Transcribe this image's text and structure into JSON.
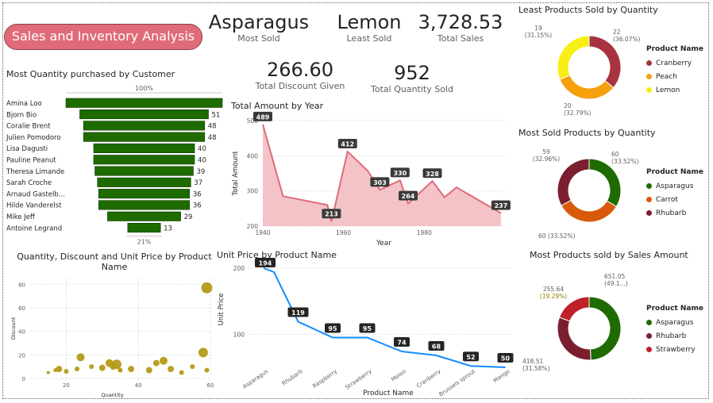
{
  "app_title": "Sales and Inventory Analysis",
  "kpis": {
    "most_sold_value": "Asparagus",
    "most_sold_label": "Most Sold",
    "least_sold_value": "Lemon",
    "least_sold_label": "Least Sold",
    "total_sales_value": "3,728.53",
    "total_sales_label": "Total Sales",
    "discount_value": "266.60",
    "discount_label": "Total Discount Given",
    "qty_value": "952",
    "qty_label": "Total Quantity Sold"
  },
  "chart_data": [
    {
      "id": "funnel",
      "type": "bar",
      "title": "Most Quantity purchased by Customer",
      "top_pct": "100%",
      "bottom_pct": "21%",
      "color": "#1e6b00",
      "categories": [
        "Amina Loo",
        "Bjorn Bio",
        "Coralie Brent",
        "Julien Pomodoro",
        "Lisa Dagusti",
        "Pauline Peanut",
        "Theresa Limande",
        "Sarah Croche",
        "Arnaud Gastelb...",
        "Hilde Vanderelst",
        "Mike Jeff",
        "Antoine Legrand"
      ],
      "values": [
        62,
        51,
        48,
        48,
        40,
        40,
        39,
        37,
        36,
        36,
        29,
        13
      ],
      "labels": [
        "",
        "51",
        "48",
        "48",
        "40",
        "40",
        "39",
        "37",
        "36",
        "36",
        "29",
        "13"
      ]
    },
    {
      "id": "area",
      "type": "area",
      "title": "Total Amount by Year",
      "xlabel": "Year",
      "ylabel": "Total Amount",
      "xlim": [
        1940,
        2000
      ],
      "ylim": [
        200,
        500
      ],
      "x_ticks": [
        "1940",
        "1960",
        "1980"
      ],
      "y_ticks": [
        "200",
        "300",
        "400",
        "500"
      ],
      "color": "#e06b78",
      "fill": "#f3c3c8",
      "points": [
        {
          "x": 1940,
          "y": 489
        },
        {
          "x": 1945,
          "y": 285
        },
        {
          "x": 1956,
          "y": 260
        },
        {
          "x": 1957,
          "y": 213
        },
        {
          "x": 1961,
          "y": 412
        },
        {
          "x": 1966,
          "y": 357
        },
        {
          "x": 1969,
          "y": 303
        },
        {
          "x": 1974,
          "y": 330
        },
        {
          "x": 1976,
          "y": 264
        },
        {
          "x": 1982,
          "y": 328
        },
        {
          "x": 1985,
          "y": 282
        },
        {
          "x": 1988,
          "y": 310
        },
        {
          "x": 1999,
          "y": 237
        }
      ],
      "data_labels": [
        {
          "x": 1940,
          "y": 489,
          "text": "489"
        },
        {
          "x": 1957,
          "y": 213,
          "text": "213"
        },
        {
          "x": 1961,
          "y": 412,
          "text": "412"
        },
        {
          "x": 1969,
          "y": 303,
          "text": "303"
        },
        {
          "x": 1974,
          "y": 330,
          "text": "330"
        },
        {
          "x": 1976,
          "y": 264,
          "text": "264"
        },
        {
          "x": 1982,
          "y": 328,
          "text": "328"
        },
        {
          "x": 1999,
          "y": 237,
          "text": "237"
        }
      ]
    },
    {
      "id": "scatter",
      "type": "scatter",
      "title": "Quantity, Discount and Unit Price by Product Name",
      "xlabel": "Quantity",
      "ylabel": "Discount",
      "xlim": [
        10,
        60
      ],
      "ylim": [
        0,
        85
      ],
      "x_ticks": [
        "20",
        "40",
        "60"
      ],
      "y_ticks": [
        "0",
        "20",
        "40",
        "60",
        "80"
      ],
      "color": "#b59a17",
      "points": [
        {
          "x": 15,
          "y": 5,
          "r": 2
        },
        {
          "x": 17,
          "y": 7,
          "r": 2.5
        },
        {
          "x": 18,
          "y": 8,
          "r": 4
        },
        {
          "x": 20,
          "y": 6,
          "r": 3
        },
        {
          "x": 23,
          "y": 8,
          "r": 3
        },
        {
          "x": 24,
          "y": 18,
          "r": 5
        },
        {
          "x": 27,
          "y": 10,
          "r": 3
        },
        {
          "x": 30,
          "y": 9,
          "r": 4
        },
        {
          "x": 32,
          "y": 13,
          "r": 5
        },
        {
          "x": 33,
          "y": 10,
          "r": 4
        },
        {
          "x": 34,
          "y": 12,
          "r": 6
        },
        {
          "x": 35,
          "y": 7,
          "r": 3
        },
        {
          "x": 38,
          "y": 8,
          "r": 4
        },
        {
          "x": 43,
          "y": 7,
          "r": 4
        },
        {
          "x": 45,
          "y": 13,
          "r": 4
        },
        {
          "x": 47,
          "y": 15,
          "r": 5
        },
        {
          "x": 49,
          "y": 8,
          "r": 4
        },
        {
          "x": 52,
          "y": 5,
          "r": 3
        },
        {
          "x": 55,
          "y": 10,
          "r": 3
        },
        {
          "x": 58,
          "y": 22,
          "r": 6
        },
        {
          "x": 59,
          "y": 7,
          "r": 3
        },
        {
          "x": 59,
          "y": 77,
          "r": 7
        }
      ]
    },
    {
      "id": "unitprice",
      "type": "line",
      "title": "Unit Price by Product Name",
      "xlabel": "Product Name",
      "ylabel": "Unit Price",
      "ylim": [
        50,
        200
      ],
      "y_ticks": [
        "100",
        "200"
      ],
      "color": "#118dff",
      "categories": [
        "Asparagus",
        "Rhubarb",
        "Raspberry",
        "Strawberry",
        "Melon",
        "Cranberry",
        "Brussels sprout",
        "Mango"
      ],
      "label_values": [
        194,
        119,
        95,
        95,
        74,
        68,
        52,
        50
      ],
      "line_points": [
        {
          "x": 0,
          "y": 200
        },
        {
          "x": 0.3,
          "y": 194
        },
        {
          "x": 1,
          "y": 119
        },
        {
          "x": 2,
          "y": 95
        },
        {
          "x": 3,
          "y": 95
        },
        {
          "x": 4,
          "y": 74
        },
        {
          "x": 5,
          "y": 68
        },
        {
          "x": 6,
          "y": 52
        },
        {
          "x": 7,
          "y": 50
        }
      ]
    },
    {
      "id": "donut-least",
      "type": "pie",
      "title": "Least Products Sold by Quantity",
      "legend_title": "Product Name",
      "series": [
        {
          "name": "Cranberry",
          "value": 22,
          "label_value": "22",
          "label_pct": "(36.07%)",
          "color": "#a83240"
        },
        {
          "name": "Peach",
          "value": 20,
          "label_value": "20",
          "label_pct": "(32.79%)",
          "color": "#f5a00c"
        },
        {
          "name": "Lemon",
          "value": 19,
          "label_value": "19",
          "label_pct": "(31.15%)",
          "color": "#f7ef14"
        }
      ]
    },
    {
      "id": "donut-most",
      "type": "pie",
      "title": "Most Sold Products by Quantity",
      "legend_title": "Product Name",
      "series": [
        {
          "name": "Asparagus",
          "value": 60,
          "label_value": "60",
          "label_pct": "(33.52%)",
          "color": "#1e6b00"
        },
        {
          "name": "Carrot",
          "value": 60,
          "label_value": "60 (33.52%)",
          "label_pct": "",
          "color": "#d95a0a"
        },
        {
          "name": "Rhubarb",
          "value": 59,
          "label_value": "59",
          "label_pct": "(32.96%)",
          "color": "#7a1f2e"
        }
      ]
    },
    {
      "id": "donut-sales",
      "type": "pie",
      "title": "Most Products sold by Sales Amount",
      "legend_title": "Product Name",
      "series": [
        {
          "name": "Asparagus",
          "value": 651.05,
          "label_value": "651.05",
          "label_pct": "(49.1...)",
          "color": "#1e6b00"
        },
        {
          "name": "Rhubarb",
          "value": 418.51,
          "label_value": "418.51",
          "label_pct": "(31.58%)",
          "color": "#7a1f2e"
        },
        {
          "name": "Strawberry",
          "value": 255.64,
          "label_value": "255.64",
          "label_pct": "(19.29%)",
          "color": "#c0202a"
        }
      ]
    }
  ]
}
